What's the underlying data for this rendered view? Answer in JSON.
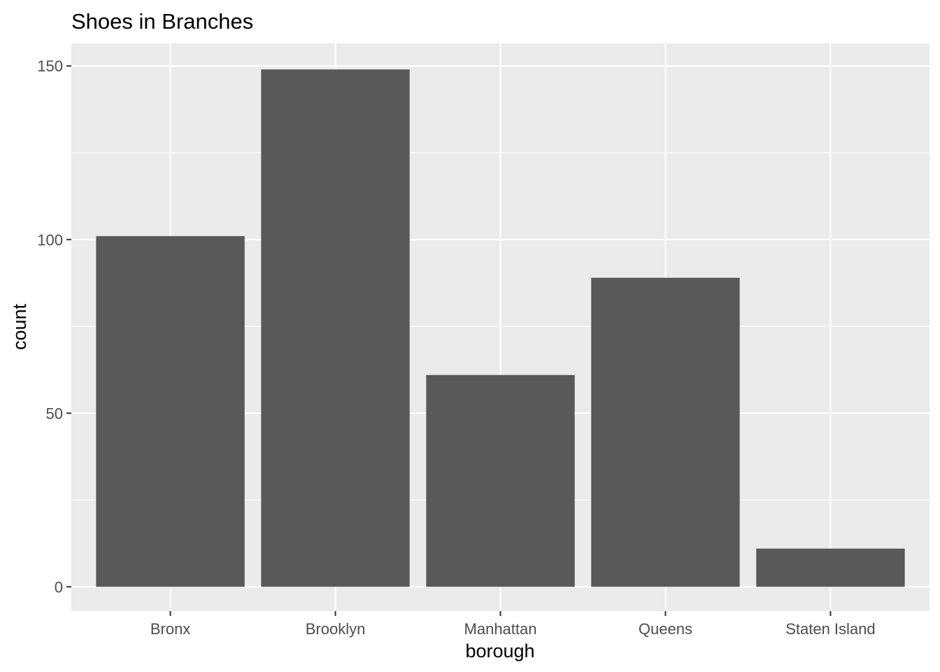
{
  "chart_data": {
    "type": "bar",
    "title": "Shoes in Branches",
    "xlabel": "borough",
    "ylabel": "count",
    "categories": [
      "Bronx",
      "Brooklyn",
      "Manhattan",
      "Queens",
      "Staten Island"
    ],
    "values": [
      101,
      149,
      61,
      89,
      11
    ],
    "ylim": [
      -7,
      156.5
    ],
    "y_ticks": [
      0,
      50,
      100,
      150
    ],
    "y_tick_labels": [
      "0",
      "50",
      "100",
      "150"
    ],
    "grid": true,
    "legend": "none",
    "colors": {
      "bar": "#595959",
      "panel_background": "#ebebeb",
      "grid_line": "#ffffff",
      "tick_label": "#4d4d4d",
      "tick_mark": "#333333"
    }
  }
}
